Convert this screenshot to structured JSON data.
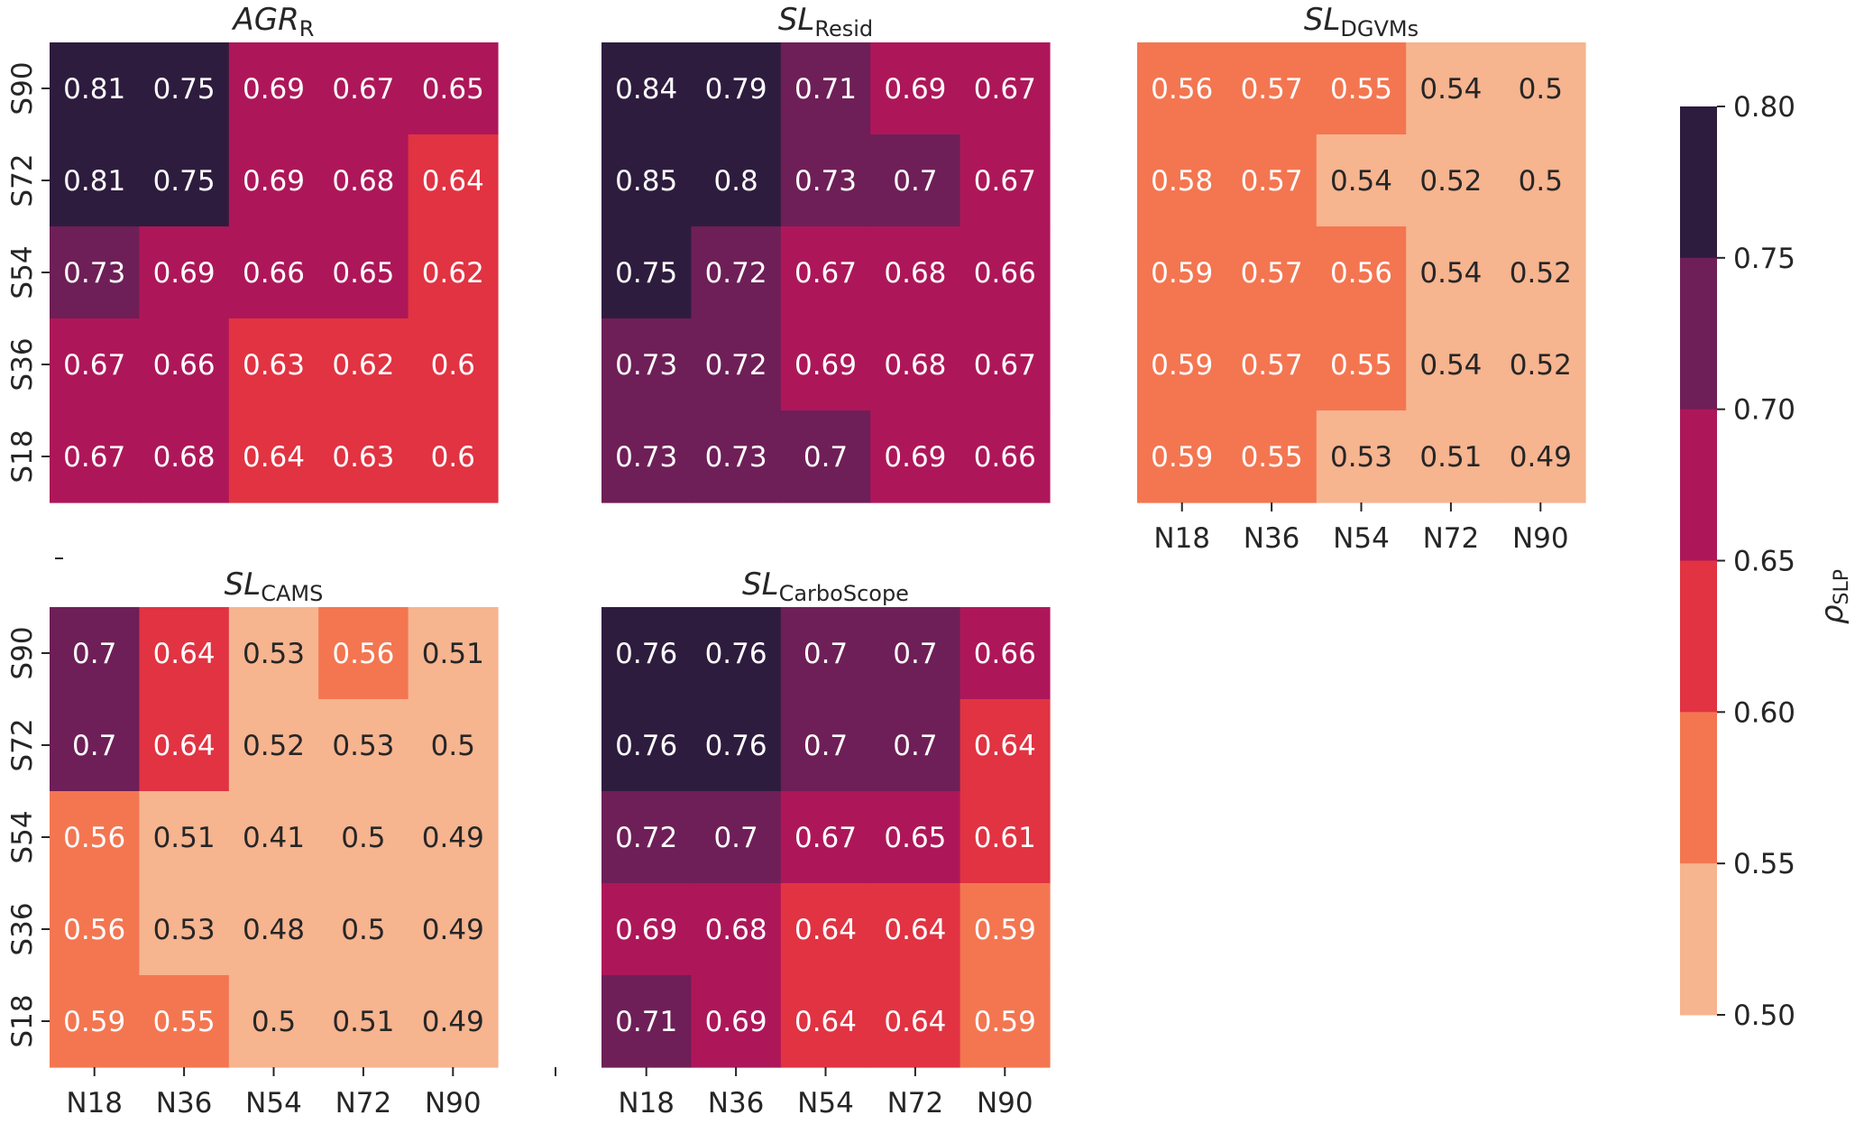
{
  "chart_data": {
    "type": "heatmap",
    "x_categories": [
      "N18",
      "N36",
      "N54",
      "N72",
      "N90"
    ],
    "y_categories": [
      "S90",
      "S72",
      "S54",
      "S36",
      "S18"
    ],
    "panels": [
      {
        "id": "agr",
        "title_main": "AGR",
        "title_sub": "R",
        "show_y_ticks": true,
        "show_x_ticks": false,
        "values": [
          [
            0.81,
            0.75,
            0.69,
            0.67,
            0.65
          ],
          [
            0.81,
            0.75,
            0.69,
            0.68,
            0.64
          ],
          [
            0.73,
            0.69,
            0.66,
            0.65,
            0.62
          ],
          [
            0.67,
            0.66,
            0.63,
            0.62,
            0.6
          ],
          [
            0.67,
            0.68,
            0.64,
            0.63,
            0.6
          ]
        ],
        "labels": [
          [
            "0.81",
            "0.75",
            "0.69",
            "0.67",
            "0.65"
          ],
          [
            "0.81",
            "0.75",
            "0.69",
            "0.68",
            "0.64"
          ],
          [
            "0.73",
            "0.69",
            "0.66",
            "0.65",
            "0.62"
          ],
          [
            "0.67",
            "0.66",
            "0.63",
            "0.62",
            "0.6"
          ],
          [
            "0.67",
            "0.68",
            "0.64",
            "0.63",
            "0.6"
          ]
        ]
      },
      {
        "id": "resid",
        "title_main": "SL",
        "title_sub": "Resid",
        "show_y_ticks": false,
        "show_x_ticks": false,
        "values": [
          [
            0.84,
            0.79,
            0.71,
            0.69,
            0.67
          ],
          [
            0.85,
            0.8,
            0.73,
            0.7,
            0.67
          ],
          [
            0.75,
            0.72,
            0.67,
            0.68,
            0.66
          ],
          [
            0.73,
            0.72,
            0.69,
            0.68,
            0.67
          ],
          [
            0.73,
            0.73,
            0.7,
            0.69,
            0.66
          ]
        ],
        "labels": [
          [
            "0.84",
            "0.79",
            "0.71",
            "0.69",
            "0.67"
          ],
          [
            "0.85",
            "0.8",
            "0.73",
            "0.7",
            "0.67"
          ],
          [
            "0.75",
            "0.72",
            "0.67",
            "0.68",
            "0.66"
          ],
          [
            "0.73",
            "0.72",
            "0.69",
            "0.68",
            "0.67"
          ],
          [
            "0.73",
            "0.73",
            "0.7",
            "0.69",
            "0.66"
          ]
        ]
      },
      {
        "id": "dgvms",
        "title_main": "SL",
        "title_sub": "DGVMs",
        "show_y_ticks": false,
        "show_x_ticks": true,
        "values": [
          [
            0.56,
            0.57,
            0.55,
            0.54,
            0.5
          ],
          [
            0.58,
            0.57,
            0.54,
            0.52,
            0.5
          ],
          [
            0.59,
            0.57,
            0.56,
            0.54,
            0.52
          ],
          [
            0.59,
            0.57,
            0.55,
            0.54,
            0.52
          ],
          [
            0.59,
            0.55,
            0.53,
            0.51,
            0.49
          ]
        ],
        "labels": [
          [
            "0.56",
            "0.57",
            "0.55",
            "0.54",
            "0.5"
          ],
          [
            "0.58",
            "0.57",
            "0.54",
            "0.52",
            "0.5"
          ],
          [
            "0.59",
            "0.57",
            "0.56",
            "0.54",
            "0.52"
          ],
          [
            "0.59",
            "0.57",
            "0.55",
            "0.54",
            "0.52"
          ],
          [
            "0.59",
            "0.55",
            "0.53",
            "0.51",
            "0.49"
          ]
        ]
      },
      {
        "id": "cams",
        "title_main": "SL",
        "title_sub": "CAMS",
        "show_y_ticks": true,
        "show_x_ticks": true,
        "values": [
          [
            0.7,
            0.64,
            0.53,
            0.56,
            0.51
          ],
          [
            0.7,
            0.64,
            0.52,
            0.53,
            0.5
          ],
          [
            0.56,
            0.51,
            0.41,
            0.5,
            0.49
          ],
          [
            0.56,
            0.53,
            0.48,
            0.5,
            0.49
          ],
          [
            0.59,
            0.55,
            0.5,
            0.51,
            0.49
          ]
        ],
        "labels": [
          [
            "0.7",
            "0.64",
            "0.53",
            "0.56",
            "0.51"
          ],
          [
            "0.7",
            "0.64",
            "0.52",
            "0.53",
            "0.5"
          ],
          [
            "0.56",
            "0.51",
            "0.41",
            "0.5",
            "0.49"
          ],
          [
            "0.56",
            "0.53",
            "0.48",
            "0.5",
            "0.49"
          ],
          [
            "0.59",
            "0.55",
            "0.5",
            "0.51",
            "0.49"
          ]
        ]
      },
      {
        "id": "carboscope",
        "title_main": "SL",
        "title_sub": "CarboScope",
        "show_y_ticks": false,
        "show_x_ticks": true,
        "values": [
          [
            0.76,
            0.76,
            0.7,
            0.7,
            0.66
          ],
          [
            0.76,
            0.76,
            0.7,
            0.7,
            0.64
          ],
          [
            0.72,
            0.7,
            0.67,
            0.65,
            0.61
          ],
          [
            0.69,
            0.68,
            0.64,
            0.64,
            0.59
          ],
          [
            0.71,
            0.69,
            0.64,
            0.64,
            0.59
          ]
        ],
        "labels": [
          [
            "0.76",
            "0.76",
            "0.7",
            "0.7",
            "0.66"
          ],
          [
            "0.76",
            "0.76",
            "0.7",
            "0.7",
            "0.64"
          ],
          [
            "0.72",
            "0.7",
            "0.67",
            "0.65",
            "0.61"
          ],
          [
            "0.69",
            "0.68",
            "0.64",
            "0.64",
            "0.59"
          ],
          [
            "0.71",
            "0.69",
            "0.64",
            "0.64",
            "0.59"
          ]
        ]
      }
    ],
    "colorbar": {
      "label_main": "ρ",
      "label_sub": "SLP",
      "ticks": [
        "0.80",
        "0.75",
        "0.70",
        "0.65",
        "0.60",
        "0.55",
        "0.50"
      ],
      "range": [
        0.5,
        0.8
      ],
      "bins": [
        {
          "min": 0.75,
          "max": 0.8,
          "color": "#2e1c3e"
        },
        {
          "min": 0.7,
          "max": 0.75,
          "color": "#6e1f57"
        },
        {
          "min": 0.65,
          "max": 0.7,
          "color": "#ad1759"
        },
        {
          "min": 0.6,
          "max": 0.65,
          "color": "#e13342"
        },
        {
          "min": 0.55,
          "max": 0.6,
          "color": "#f37651"
        },
        {
          "min": 0.0,
          "max": 0.55,
          "color": "#f6b48f"
        }
      ],
      "dark_text_color": "#262626",
      "light_text_color": "#ffffff"
    }
  }
}
